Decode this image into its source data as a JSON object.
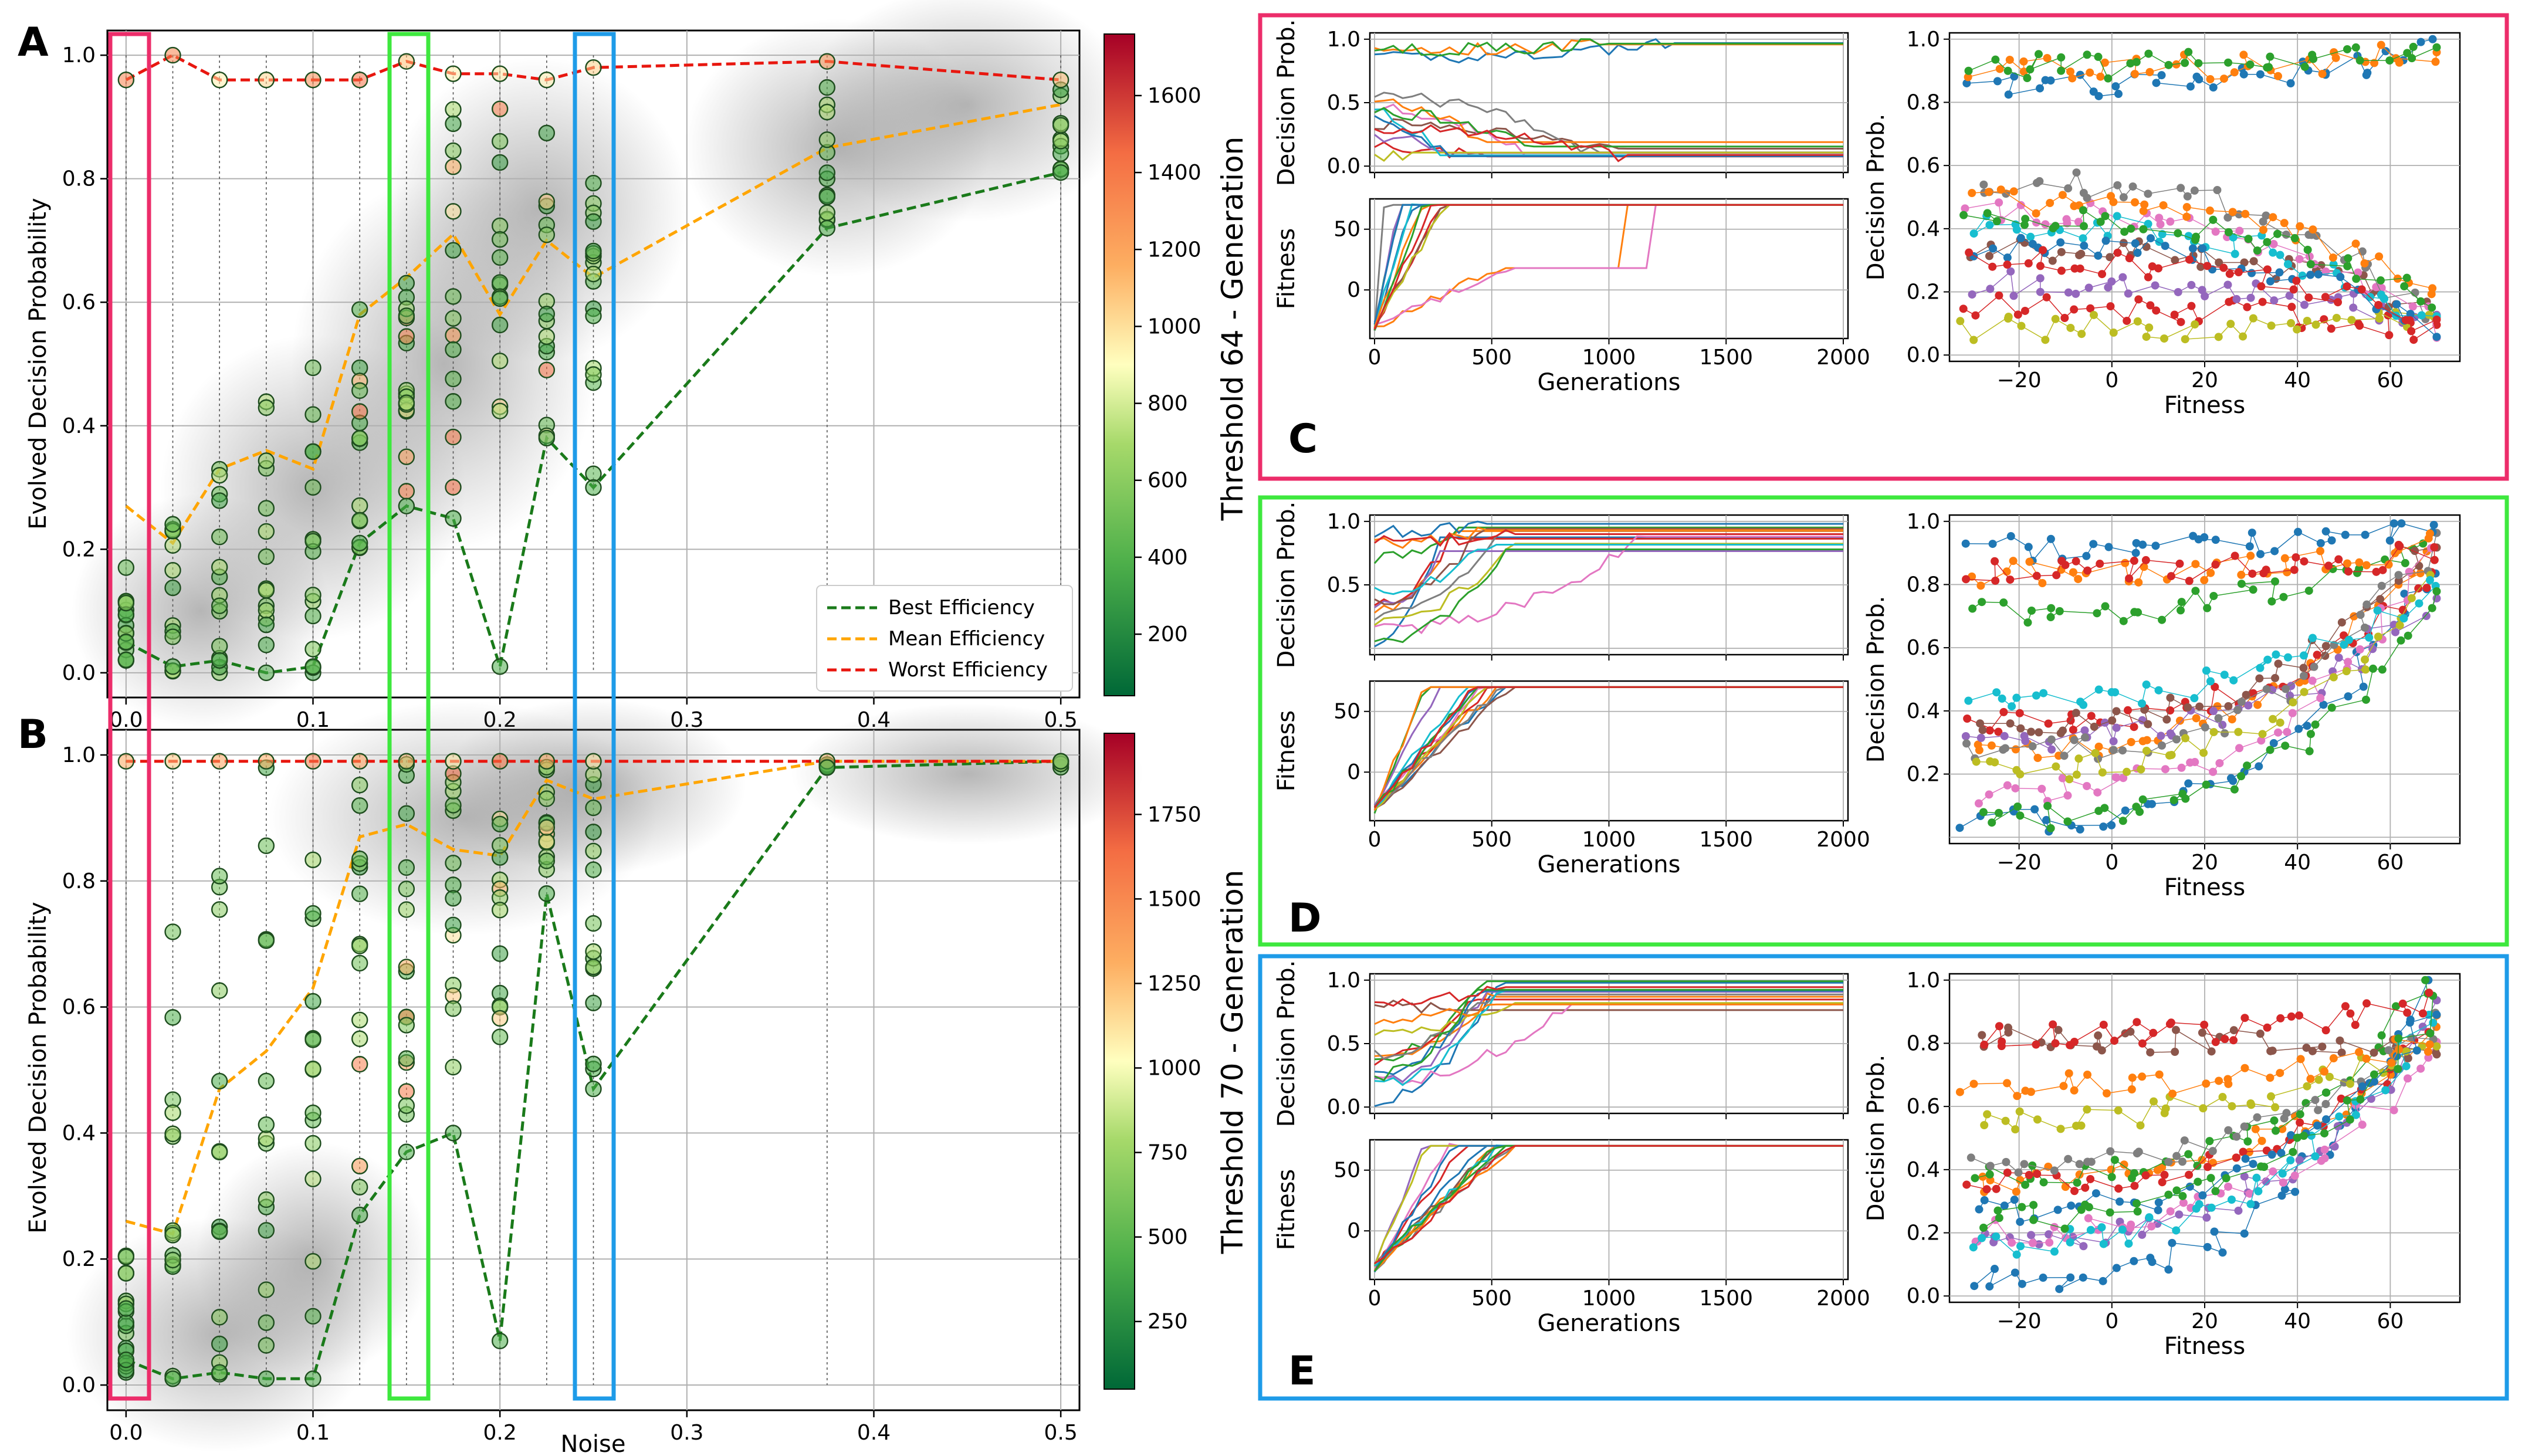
{
  "colors": {
    "best": "#1a7a1a",
    "mean": "#ffa500",
    "worst": "#e8170f",
    "pink": "#ec2d6a",
    "green": "#3ee83e",
    "blue": "#1e9be8",
    "palette": [
      "#1f77b4",
      "#ff7f0e",
      "#2ca02c",
      "#d62728",
      "#9467bd",
      "#8c564b",
      "#e377c2",
      "#7f7f7f",
      "#bcbd22",
      "#17becf"
    ]
  },
  "panels": {
    "A": "A",
    "B": "B",
    "C": "C",
    "D": "D",
    "E": "E"
  },
  "labels": {
    "ylabel": "Evolved Decision Probability",
    "xlabel": "Noise",
    "th64": "Threshold 64 - Generation",
    "th70": "Threshold 70 - Generation",
    "dp": "Decision Prob.",
    "fit": "Fitness",
    "gen": "Generations"
  },
  "legend": {
    "best": "Best Efficiency",
    "mean": "Mean Efficiency",
    "worst": "Worst Efficiency"
  },
  "chart_data": [
    {
      "id": "A",
      "type": "scatter",
      "xlabel": "Noise",
      "ylabel": "Evolved Decision Probability",
      "xlim": [
        -0.01,
        0.51
      ],
      "ylim": [
        -0.04,
        1.04
      ],
      "xticks": [
        "0.0",
        "0.1",
        "0.2",
        "0.3",
        "0.4",
        "0.5"
      ],
      "yticks": [
        "0.0",
        "0.2",
        "0.4",
        "0.6",
        "0.8",
        "1.0"
      ],
      "noise_levels": [
        0,
        0.025,
        0.05,
        0.075,
        0.1,
        0.125,
        0.15,
        0.175,
        0.2,
        0.225,
        0.25,
        0.375,
        0.5
      ],
      "best": [
        0.05,
        0.01,
        0.02,
        0.0,
        0.01,
        0.21,
        0.27,
        0.25,
        0.01,
        0.38,
        0.3,
        0.72,
        0.81
      ],
      "mean": [
        0.27,
        0.21,
        0.33,
        0.36,
        0.33,
        0.58,
        0.64,
        0.71,
        0.58,
        0.7,
        0.64,
        0.85,
        0.92
      ],
      "worst": [
        0.96,
        1.0,
        0.96,
        0.96,
        0.96,
        0.96,
        0.99,
        0.97,
        0.97,
        0.96,
        0.98,
        0.99,
        0.96
      ],
      "colorbar": {
        "ticks": [
          "200",
          "400",
          "600",
          "800",
          "1000",
          "1200",
          "1400",
          "1600"
        ],
        "min": 40,
        "max": 1760
      }
    },
    {
      "id": "B",
      "type": "scatter",
      "xlabel": "Noise",
      "ylabel": "Evolved Decision Probability",
      "xlim": [
        -0.01,
        0.51
      ],
      "ylim": [
        -0.04,
        1.04
      ],
      "xticks": [
        "0.0",
        "0.1",
        "0.2",
        "0.3",
        "0.4",
        "0.5"
      ],
      "yticks": [
        "0.0",
        "0.2",
        "0.4",
        "0.6",
        "0.8",
        "1.0"
      ],
      "noise_levels": [
        0,
        0.025,
        0.05,
        0.075,
        0.1,
        0.125,
        0.15,
        0.175,
        0.2,
        0.225,
        0.25,
        0.375,
        0.5
      ],
      "best": [
        0.04,
        0.01,
        0.02,
        0.01,
        0.01,
        0.27,
        0.37,
        0.4,
        0.07,
        0.78,
        0.47,
        0.98,
        0.99
      ],
      "mean": [
        0.26,
        0.24,
        0.47,
        0.53,
        0.63,
        0.87,
        0.89,
        0.85,
        0.84,
        0.96,
        0.93,
        0.99,
        0.99
      ],
      "worst": [
        0.99,
        0.99,
        0.99,
        0.99,
        0.99,
        0.99,
        0.99,
        0.99,
        0.99,
        0.99,
        0.99,
        0.99,
        0.99
      ],
      "colorbar": {
        "ticks": [
          "250",
          "500",
          "750",
          "1000",
          "1250",
          "1500",
          "1750"
        ],
        "min": 50,
        "max": 1990
      }
    },
    {
      "id": "C",
      "type": "line",
      "threshold": 64,
      "gen_xticks": [
        "0",
        "500",
        "1000",
        "1500",
        "2000"
      ],
      "dp_yticks": [
        "0.0",
        "0.5",
        "1.0"
      ],
      "fit_yticks": [
        "0",
        "50"
      ],
      "fit_xticks": [
        "−20",
        "0",
        "20",
        "40",
        "60"
      ],
      "fit_dp_yticks": [
        "0.0",
        "0.2",
        "0.4",
        "0.6",
        "0.8",
        "1.0"
      ]
    },
    {
      "id": "D",
      "type": "line",
      "threshold": 70,
      "gen_xticks": [
        "0",
        "500",
        "1000",
        "1500",
        "2000"
      ],
      "dp_yticks": [
        "0.5",
        "1.0"
      ],
      "fit_yticks": [
        "0",
        "50"
      ],
      "fit_xticks": [
        "−20",
        "0",
        "20",
        "40",
        "60"
      ],
      "fit_dp_yticks": [
        "0.2",
        "0.4",
        "0.6",
        "0.8",
        "1.0"
      ]
    },
    {
      "id": "E",
      "type": "line",
      "threshold": 70,
      "gen_xticks": [
        "0",
        "500",
        "1000",
        "1500",
        "2000"
      ],
      "dp_yticks": [
        "0.0",
        "0.5",
        "1.0"
      ],
      "fit_yticks": [
        "0",
        "50"
      ],
      "fit_xticks": [
        "−20",
        "0",
        "20",
        "40",
        "60"
      ],
      "fit_dp_yticks": [
        "0.0",
        "0.2",
        "0.4",
        "0.6",
        "0.8",
        "1.0"
      ]
    }
  ]
}
